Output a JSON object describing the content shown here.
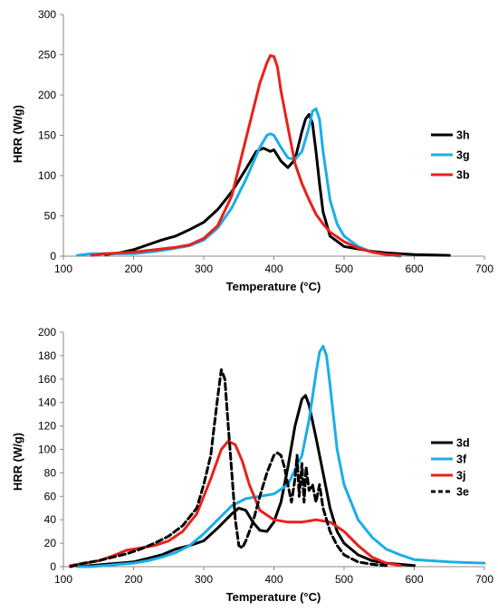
{
  "chart_data": [
    {
      "type": "line",
      "title": "",
      "xlabel": "Temperature (°C)",
      "ylabel": "HRR (W/g)",
      "xlim": [
        100,
        700
      ],
      "ylim": [
        0,
        300
      ],
      "xticks": [
        100,
        200,
        300,
        400,
        500,
        600,
        700
      ],
      "yticks": [
        0,
        50,
        100,
        150,
        200,
        250,
        300
      ],
      "grid": false,
      "legend_position": "right",
      "series": [
        {
          "name": "3h",
          "color": "#000000",
          "dash": "solid",
          "x": [
            160,
            180,
            200,
            220,
            240,
            260,
            280,
            300,
            320,
            340,
            360,
            375,
            385,
            395,
            400,
            410,
            420,
            430,
            440,
            445,
            450,
            455,
            460,
            465,
            470,
            480,
            500,
            520,
            540,
            560,
            600,
            650
          ],
          "y": [
            2,
            4,
            8,
            14,
            20,
            25,
            33,
            42,
            58,
            80,
            108,
            130,
            134,
            130,
            132,
            118,
            110,
            120,
            155,
            170,
            176,
            165,
            130,
            90,
            55,
            25,
            12,
            9,
            6,
            4,
            2,
            1
          ]
        },
        {
          "name": "3g",
          "color": "#1aaee8",
          "dash": "solid",
          "x": [
            120,
            140,
            160,
            180,
            200,
            220,
            240,
            260,
            280,
            300,
            320,
            340,
            360,
            380,
            390,
            395,
            400,
            410,
            420,
            430,
            440,
            450,
            455,
            460,
            465,
            470,
            480,
            490,
            500,
            520,
            540,
            560,
            580
          ],
          "y": [
            1,
            3,
            3,
            3,
            3,
            5,
            7,
            10,
            13,
            20,
            35,
            60,
            95,
            135,
            150,
            152,
            150,
            135,
            122,
            120,
            130,
            160,
            180,
            183,
            170,
            130,
            70,
            40,
            25,
            12,
            5,
            2,
            0
          ]
        },
        {
          "name": "3b",
          "color": "#e8211b",
          "dash": "solid",
          "x": [
            140,
            160,
            180,
            200,
            220,
            240,
            260,
            280,
            300,
            320,
            340,
            360,
            380,
            390,
            395,
            400,
            405,
            410,
            420,
            430,
            440,
            450,
            460,
            470,
            480,
            500,
            520,
            540,
            560,
            580
          ],
          "y": [
            1,
            3,
            4,
            5,
            7,
            9,
            11,
            14,
            22,
            38,
            75,
            145,
            215,
            240,
            249,
            248,
            235,
            205,
            160,
            115,
            90,
            70,
            52,
            40,
            30,
            18,
            10,
            5,
            2,
            1
          ]
        }
      ]
    },
    {
      "type": "line",
      "title": "",
      "xlabel": "Temperature (°C)",
      "ylabel": "HRR (W/g)",
      "xlim": [
        100,
        700
      ],
      "ylim": [
        0,
        200
      ],
      "xticks": [
        100,
        200,
        300,
        400,
        500,
        600,
        700
      ],
      "yticks": [
        0,
        20,
        40,
        60,
        80,
        100,
        120,
        140,
        160,
        180,
        200
      ],
      "grid": false,
      "legend_position": "right",
      "series": [
        {
          "name": "3d",
          "color": "#000000",
          "dash": "solid",
          "x": [
            120,
            140,
            160,
            180,
            200,
            220,
            240,
            260,
            280,
            300,
            320,
            340,
            350,
            360,
            370,
            380,
            390,
            400,
            410,
            420,
            430,
            440,
            445,
            450,
            460,
            470,
            480,
            490,
            500,
            520,
            540,
            560,
            600
          ],
          "y": [
            0,
            1,
            2,
            3,
            4,
            7,
            10,
            15,
            18,
            22,
            33,
            45,
            50,
            48,
            38,
            31,
            30,
            38,
            55,
            85,
            120,
            143,
            146,
            138,
            110,
            80,
            50,
            30,
            20,
            10,
            5,
            3,
            1
          ]
        },
        {
          "name": "3f",
          "color": "#1aaee8",
          "dash": "solid",
          "x": [
            120,
            140,
            160,
            180,
            200,
            220,
            240,
            260,
            280,
            300,
            320,
            340,
            360,
            380,
            400,
            420,
            440,
            450,
            460,
            465,
            470,
            475,
            480,
            490,
            500,
            520,
            540,
            560,
            580,
            600,
            650,
            700
          ],
          "y": [
            0,
            0,
            1,
            2,
            3,
            5,
            8,
            12,
            18,
            28,
            40,
            52,
            58,
            60,
            62,
            70,
            95,
            125,
            165,
            183,
            188,
            180,
            155,
            100,
            70,
            40,
            25,
            15,
            10,
            6,
            4,
            3
          ]
        },
        {
          "name": "3j",
          "color": "#e8211b",
          "dash": "solid",
          "x": [
            110,
            130,
            150,
            170,
            190,
            210,
            230,
            250,
            270,
            290,
            310,
            325,
            335,
            345,
            355,
            365,
            380,
            400,
            420,
            440,
            460,
            480,
            500,
            520,
            540,
            560,
            580
          ],
          "y": [
            1,
            3,
            5,
            9,
            14,
            16,
            18,
            22,
            30,
            45,
            75,
            100,
            107,
            104,
            90,
            70,
            48,
            40,
            38,
            38,
            40,
            38,
            30,
            18,
            8,
            3,
            1
          ]
        },
        {
          "name": "3e",
          "color": "#000000",
          "dash": "dashed",
          "x": [
            110,
            130,
            150,
            170,
            190,
            210,
            230,
            250,
            270,
            290,
            300,
            310,
            315,
            320,
            325,
            330,
            335,
            340,
            345,
            350,
            355,
            360,
            370,
            380,
            390,
            400,
            405,
            410,
            415,
            420,
            425,
            430,
            433,
            436,
            440,
            443,
            446,
            450,
            455,
            460,
            465,
            470,
            480,
            490,
            500,
            520,
            540,
            560
          ],
          "y": [
            0,
            3,
            5,
            8,
            11,
            15,
            20,
            26,
            35,
            50,
            70,
            95,
            120,
            145,
            168,
            160,
            120,
            80,
            40,
            18,
            16,
            22,
            38,
            60,
            80,
            95,
            97,
            95,
            85,
            70,
            55,
            75,
            95,
            60,
            88,
            55,
            85,
            65,
            70,
            55,
            70,
            50,
            30,
            18,
            10,
            4,
            2,
            1
          ]
        }
      ]
    }
  ]
}
